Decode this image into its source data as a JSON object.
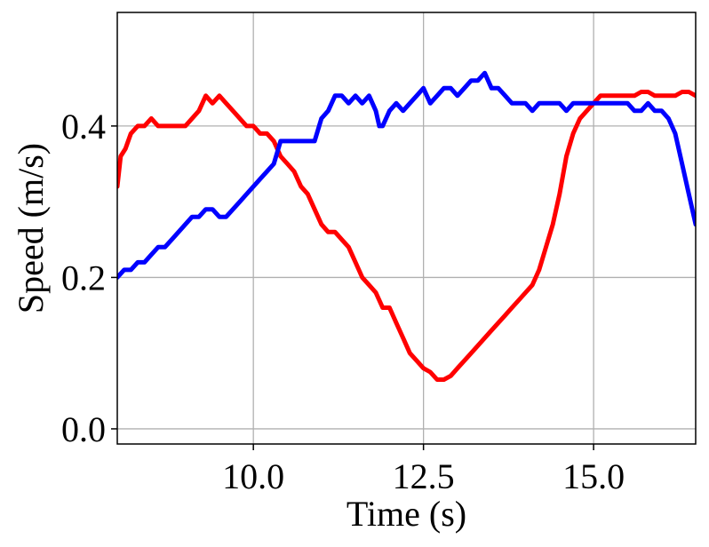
{
  "chart_data": {
    "type": "line",
    "xlabel": "Time (s)",
    "ylabel": "Speed (m/s)",
    "xlim": [
      8.0,
      16.5
    ],
    "ylim": [
      -0.02,
      0.55
    ],
    "xticks": [
      10.0,
      12.5,
      15.0
    ],
    "xtick_labels": [
      "10.0",
      "12.5",
      "15.0"
    ],
    "yticks": [
      0.0,
      0.2,
      0.4
    ],
    "ytick_labels": [
      "0.0",
      "0.2",
      "0.4"
    ],
    "grid": true,
    "legend": "none",
    "series": [
      {
        "color": "#ff0000",
        "x": [
          8.0,
          8.05,
          8.12,
          8.2,
          8.3,
          8.4,
          8.5,
          8.6,
          8.7,
          8.8,
          8.9,
          9.0,
          9.1,
          9.2,
          9.3,
          9.4,
          9.5,
          9.6,
          9.7,
          9.8,
          9.9,
          10.0,
          10.1,
          10.2,
          10.3,
          10.4,
          10.5,
          10.6,
          10.7,
          10.8,
          10.9,
          11.0,
          11.1,
          11.2,
          11.3,
          11.4,
          11.5,
          11.6,
          11.7,
          11.8,
          11.9,
          12.0,
          12.1,
          12.2,
          12.3,
          12.4,
          12.5,
          12.6,
          12.7,
          12.8,
          12.9,
          13.0,
          13.1,
          13.2,
          13.3,
          13.4,
          13.5,
          13.6,
          13.7,
          13.8,
          13.9,
          14.0,
          14.1,
          14.2,
          14.3,
          14.4,
          14.5,
          14.6,
          14.7,
          14.8,
          14.9,
          15.0,
          15.1,
          15.2,
          15.3,
          15.4,
          15.5,
          15.6,
          15.7,
          15.8,
          15.9,
          16.0,
          16.1,
          16.2,
          16.3,
          16.4,
          16.5
        ],
        "y": [
          0.32,
          0.36,
          0.37,
          0.39,
          0.4,
          0.4,
          0.41,
          0.4,
          0.4,
          0.4,
          0.4,
          0.4,
          0.41,
          0.42,
          0.44,
          0.43,
          0.44,
          0.43,
          0.42,
          0.41,
          0.4,
          0.4,
          0.39,
          0.39,
          0.38,
          0.36,
          0.35,
          0.34,
          0.32,
          0.31,
          0.29,
          0.27,
          0.26,
          0.26,
          0.25,
          0.24,
          0.22,
          0.2,
          0.19,
          0.18,
          0.16,
          0.16,
          0.14,
          0.12,
          0.1,
          0.09,
          0.08,
          0.075,
          0.065,
          0.065,
          0.07,
          0.08,
          0.09,
          0.1,
          0.11,
          0.12,
          0.13,
          0.14,
          0.15,
          0.16,
          0.17,
          0.18,
          0.19,
          0.21,
          0.24,
          0.27,
          0.31,
          0.36,
          0.39,
          0.41,
          0.42,
          0.43,
          0.44,
          0.44,
          0.44,
          0.44,
          0.44,
          0.44,
          0.445,
          0.445,
          0.44,
          0.44,
          0.44,
          0.44,
          0.445,
          0.445,
          0.44
        ]
      },
      {
        "color": "#0000ff",
        "x": [
          8.0,
          8.1,
          8.2,
          8.3,
          8.4,
          8.5,
          8.6,
          8.7,
          8.8,
          8.9,
          9.0,
          9.1,
          9.2,
          9.3,
          9.4,
          9.5,
          9.6,
          9.7,
          9.8,
          9.9,
          10.0,
          10.1,
          10.2,
          10.3,
          10.4,
          10.5,
          10.6,
          10.7,
          10.8,
          10.9,
          11.0,
          11.1,
          11.2,
          11.3,
          11.4,
          11.5,
          11.6,
          11.7,
          11.8,
          11.85,
          11.9,
          12.0,
          12.1,
          12.2,
          12.3,
          12.4,
          12.5,
          12.6,
          12.7,
          12.8,
          12.9,
          13.0,
          13.1,
          13.2,
          13.3,
          13.4,
          13.5,
          13.6,
          13.7,
          13.8,
          13.9,
          14.0,
          14.1,
          14.2,
          14.3,
          14.4,
          14.5,
          14.6,
          14.7,
          14.8,
          14.9,
          15.0,
          15.1,
          15.2,
          15.3,
          15.4,
          15.5,
          15.6,
          15.7,
          15.8,
          15.9,
          16.0,
          16.1,
          16.2,
          16.3,
          16.4,
          16.5
        ],
        "y": [
          0.2,
          0.21,
          0.21,
          0.22,
          0.22,
          0.23,
          0.24,
          0.24,
          0.25,
          0.26,
          0.27,
          0.28,
          0.28,
          0.29,
          0.29,
          0.28,
          0.28,
          0.29,
          0.3,
          0.31,
          0.32,
          0.33,
          0.34,
          0.35,
          0.38,
          0.38,
          0.38,
          0.38,
          0.38,
          0.38,
          0.41,
          0.42,
          0.44,
          0.44,
          0.43,
          0.44,
          0.43,
          0.44,
          0.42,
          0.4,
          0.4,
          0.42,
          0.43,
          0.42,
          0.43,
          0.44,
          0.45,
          0.43,
          0.44,
          0.45,
          0.45,
          0.44,
          0.45,
          0.46,
          0.46,
          0.47,
          0.45,
          0.45,
          0.44,
          0.43,
          0.43,
          0.43,
          0.42,
          0.43,
          0.43,
          0.43,
          0.43,
          0.42,
          0.43,
          0.43,
          0.43,
          0.43,
          0.43,
          0.43,
          0.43,
          0.43,
          0.43,
          0.42,
          0.42,
          0.43,
          0.42,
          0.42,
          0.41,
          0.39,
          0.35,
          0.31,
          0.27
        ]
      }
    ]
  }
}
